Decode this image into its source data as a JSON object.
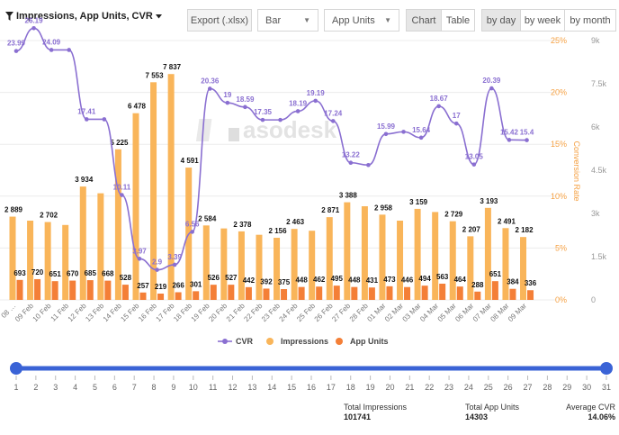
{
  "toolbar": {
    "title": "Impressions, App Units, CVR",
    "export_label": "Export (.xlsx)",
    "chart_type_value": "Bar",
    "metric_value": "App Units",
    "view_chart": "Chart",
    "view_table": "Table",
    "by_day": "by day",
    "by_week": "by week",
    "by_month": "by month"
  },
  "axes": {
    "left_ticks": [
      "25%",
      "20%",
      "15%",
      "10%",
      "5%",
      "0%"
    ],
    "right_ticks": [
      "9k",
      "7.5k",
      "6k",
      "4.5k",
      "3k",
      "1.5k",
      "0"
    ],
    "right_label": "Conversion Rate"
  },
  "watermark": "asodesk",
  "slider": {
    "ticks": [
      "1",
      "2",
      "3",
      "4",
      "5",
      "6",
      "7",
      "8",
      "9",
      "10",
      "11",
      "12",
      "13",
      "14",
      "15",
      "16",
      "17",
      "18",
      "19",
      "20",
      "21",
      "22",
      "23",
      "24",
      "25",
      "26",
      "27",
      "28",
      "29",
      "30",
      "31"
    ]
  },
  "footer": {
    "impressions_label": "Total Impressions",
    "impressions_value": "101741",
    "units_label": "Total App Units",
    "units_value": "14303",
    "cvr_label": "Average CVR",
    "cvr_value": "14.06%"
  },
  "chart_data": {
    "type": "bar",
    "categories": [
      "08 …",
      "09 Feb",
      "10 Feb",
      "11 Feb",
      "12 Feb",
      "13 Feb",
      "14 Feb",
      "15 Feb",
      "16 Feb",
      "17 Feb",
      "18 Feb",
      "19 Feb",
      "20 Feb",
      "21 Feb",
      "22 Feb",
      "23 Feb",
      "24 Feb",
      "25 Feb",
      "26 Feb",
      "27 Feb",
      "28 Feb",
      "01 Mar",
      "02 Mar",
      "03 Mar",
      "04 Mar",
      "05 Mar",
      "06 Mar",
      "07 Mar",
      "08 Mar",
      "09 Mar"
    ],
    "series": [
      {
        "name": "CVR",
        "type": "line",
        "axis": "left",
        "color": "#8a6fd1",
        "values": [
          23.99,
          26.19,
          24.09,
          24.09,
          17.41,
          17.41,
          10.11,
          3.97,
          2.9,
          3.39,
          6.56,
          20.36,
          19,
          18.59,
          17.35,
          17.35,
          18.19,
          19.19,
          17.24,
          13.22,
          13,
          15.99,
          16.2,
          15.64,
          18.67,
          17,
          13.05,
          20.39,
          15.42,
          15.4
        ],
        "labels": [
          "23.99",
          "26.19",
          "24.09",
          "",
          "17.41",
          "",
          "10.11",
          "3.97",
          "2.9",
          "3.39",
          "6.56",
          "20.36",
          "19",
          "18.59",
          "17.35",
          "",
          "18.19",
          "19.19",
          "17.24",
          "13.22",
          "",
          "15.99",
          "",
          "15.64",
          "18.67",
          "17",
          "13.05",
          "20.39",
          "15.42",
          "15.4"
        ]
      },
      {
        "name": "Impressions",
        "type": "bar",
        "axis": "right",
        "color": "#f9b55a",
        "values": [
          2889,
          2750,
          2702,
          2600,
          3934,
          3700,
          5225,
          6478,
          7553,
          7837,
          4591,
          2584,
          2480,
          2378,
          2260,
          2156,
          2463,
          2400,
          2871,
          3388,
          3250,
          2958,
          2750,
          3159,
          3050,
          2729,
          2207,
          3193,
          2491,
          2182
        ],
        "labels": [
          "2 889",
          "",
          "2 702",
          "",
          "3 934",
          "",
          "5 225",
          "6 478",
          "7 553",
          "7 837",
          "4 591",
          "2 584",
          "",
          "2 378",
          "",
          "2 156",
          "2 463",
          "",
          "2 871",
          "3 388",
          "",
          "2 958",
          "",
          "3 159",
          "",
          "2 729",
          "2 207",
          "3 193",
          "2 491",
          "2 182"
        ]
      },
      {
        "name": "App Units",
        "type": "bar",
        "axis": "right",
        "color": "#f47f37",
        "values": [
          693,
          720,
          651,
          670,
          685,
          668,
          528,
          257,
          219,
          266,
          301,
          526,
          527,
          442,
          392,
          375,
          448,
          462,
          495,
          448,
          431,
          473,
          446,
          494,
          563,
          464,
          288,
          651,
          384,
          336
        ],
        "labels": [
          "693",
          "720",
          "651",
          "670",
          "685",
          "668",
          "528",
          "257",
          "219",
          "266",
          "301",
          "526",
          "527",
          "442",
          "392",
          "375",
          "448",
          "462",
          "495",
          "448",
          "431",
          "473",
          "446",
          "494",
          "563",
          "464",
          "288",
          "651",
          "384",
          "336"
        ]
      }
    ],
    "ylim_left": [
      0,
      25
    ],
    "ylim_right": [
      0,
      9000
    ],
    "ylabel_right": "Conversion Rate",
    "grid": true,
    "legend": "bottom"
  }
}
